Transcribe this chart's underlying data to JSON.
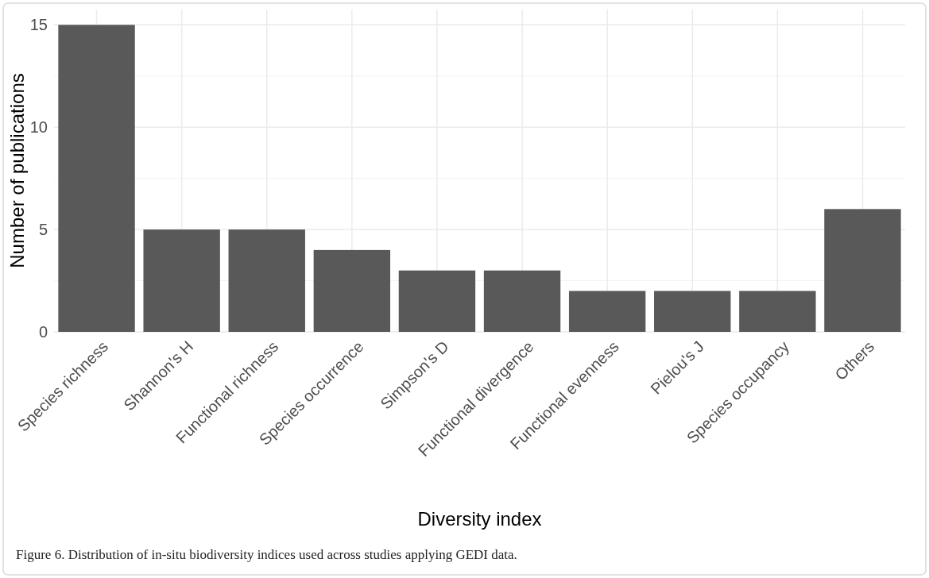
{
  "chart_data": {
    "type": "bar",
    "xlabel": "Diversity index",
    "ylabel": "Number of publications",
    "categories": [
      "Species richness",
      "Shannon's H",
      "Functional richness",
      "Species occurrence",
      "Simpson's D",
      "Functional divergence",
      "Functional evenness",
      "Pielou's J",
      "Species occupancy",
      "Others"
    ],
    "values": [
      15,
      5,
      5,
      4,
      3,
      3,
      2,
      2,
      2,
      6
    ],
    "color": "#595959",
    "ylim": [
      0,
      15.75
    ],
    "yticks": [
      0,
      5,
      10,
      15
    ],
    "grid": true,
    "annotations": [
      "Figure 6. Distribution of in-situ biodiversity indices used across studies applying GEDI data."
    ]
  }
}
